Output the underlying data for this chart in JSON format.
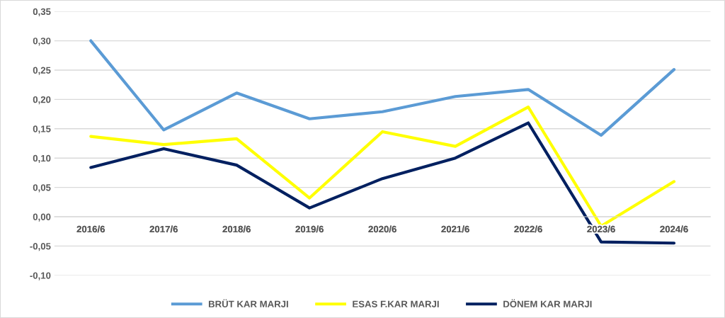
{
  "chart_data": {
    "type": "line",
    "categories": [
      "2016/6",
      "2017/6",
      "2018/6",
      "2019/6",
      "2020/6",
      "2021/6",
      "2022/6",
      "2023/6",
      "2024/6"
    ],
    "series": [
      {
        "name": "BRÜT KAR MARJI",
        "color": "#5b9bd5",
        "values": [
          0.3,
          0.148,
          0.211,
          0.167,
          0.179,
          0.205,
          0.217,
          0.139,
          0.251
        ]
      },
      {
        "name": "ESAS F.KAR MARJI",
        "color": "#ffff00",
        "values": [
          0.137,
          0.123,
          0.133,
          0.032,
          0.145,
          0.12,
          0.187,
          -0.016,
          0.06
        ]
      },
      {
        "name": "DÖNEM KAR MARJI",
        "color": "#002060",
        "values": [
          0.084,
          0.116,
          0.088,
          0.015,
          0.065,
          0.1,
          0.16,
          -0.043,
          -0.045
        ]
      }
    ],
    "ylim": [
      -0.1,
      0.35
    ],
    "yticks": [
      {
        "value": -0.1,
        "label": "-0,10"
      },
      {
        "value": -0.05,
        "label": "-0,05"
      },
      {
        "value": 0.0,
        "label": "0,00"
      },
      {
        "value": 0.05,
        "label": "0,05"
      },
      {
        "value": 0.1,
        "label": "0,10"
      },
      {
        "value": 0.15,
        "label": "0,15"
      },
      {
        "value": 0.2,
        "label": "0,20"
      },
      {
        "value": 0.25,
        "label": "0,25"
      },
      {
        "value": 0.3,
        "label": "0,30"
      },
      {
        "value": 0.35,
        "label": "0,35"
      }
    ],
    "grid": "y",
    "legend": "bottom",
    "marker": "none",
    "line_style": "solid"
  }
}
